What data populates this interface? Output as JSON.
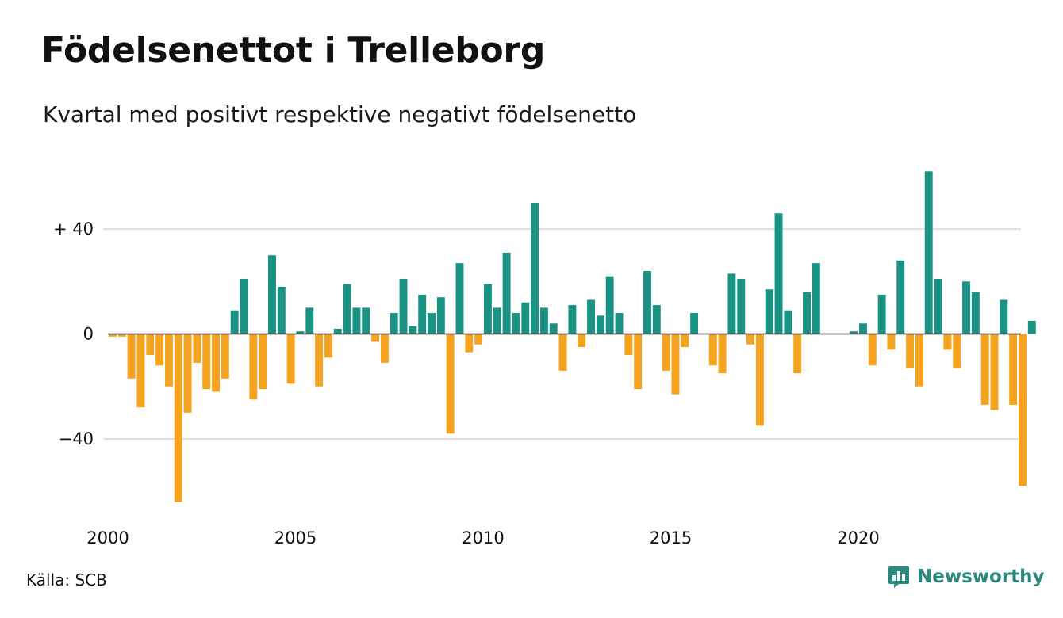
{
  "header": {
    "title": "Födelsenettot i Trelleborg",
    "subtitle": "Kvartal med positivt respektive negativt födelsenetto"
  },
  "footer": {
    "source": "Källa: SCB",
    "brand": "Newsworthy"
  },
  "colors": {
    "positive": "#1a9385",
    "negative": "#f5a21f",
    "gridline": "#dddddd",
    "zeroline": "#222222",
    "brand": "#2a8a7d"
  },
  "chart_data": {
    "type": "bar",
    "title": "Födelsenettot i Trelleborg",
    "subtitle": "Kvartal med positivt respektive negativt födelsenetto",
    "xlabel": "",
    "ylabel": "",
    "x_start": 2000,
    "periods_per_year": 4,
    "xtick_labels": [
      "2000",
      "2005",
      "2010",
      "2015",
      "2020"
    ],
    "ytick_values": [
      40,
      0,
      -40
    ],
    "ytick_labels": [
      "+ 40",
      "0",
      "−40"
    ],
    "ylim": [
      -65,
      63
    ],
    "grid": true,
    "legend": "none",
    "values": [
      -1,
      -1,
      -17,
      -28,
      -8,
      -12,
      -20,
      -64,
      -30,
      -11,
      -21,
      -22,
      -17,
      9,
      21,
      -25,
      -21,
      30,
      18,
      -19,
      1,
      10,
      -20,
      -9,
      2,
      19,
      10,
      10,
      -3,
      -11,
      8,
      21,
      3,
      15,
      8,
      14,
      -38,
      27,
      -7,
      -4,
      19,
      10,
      31,
      8,
      12,
      50,
      10,
      4,
      -14,
      11,
      -5,
      13,
      7,
      22,
      8,
      -8,
      -21,
      24,
      11,
      -14,
      -23,
      -5,
      8,
      0,
      -12,
      -15,
      23,
      21,
      -4,
      -35,
      17,
      46,
      9,
      -15,
      16,
      27,
      0,
      0,
      0,
      1,
      4,
      -12,
      15,
      -6,
      28,
      -13,
      -20,
      62,
      21,
      -6,
      -13,
      20,
      16,
      -27,
      -29,
      13,
      -27,
      -58,
      5
    ]
  }
}
